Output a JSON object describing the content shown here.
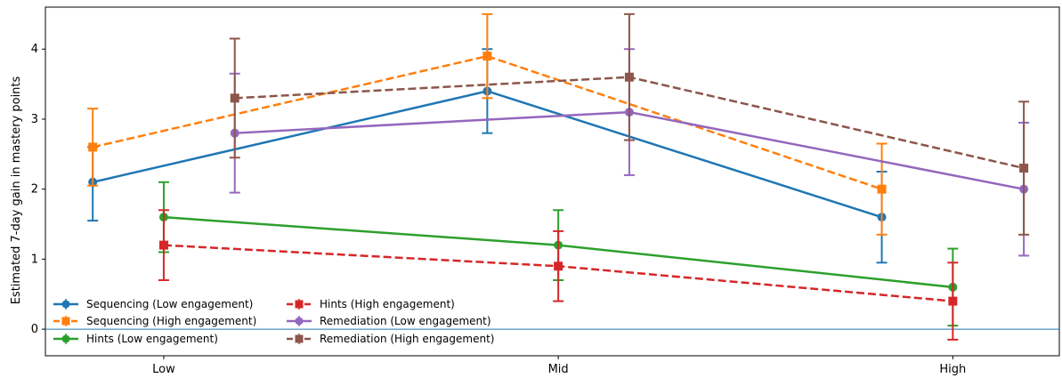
{
  "chart_data": {
    "type": "line",
    "ylabel": "Estimated 7-day gain in mastery points",
    "xlabel": "",
    "categories": [
      "Low",
      "Mid",
      "High"
    ],
    "yticks": [
      0,
      1,
      2,
      3,
      4
    ],
    "ylim": [
      -0.38,
      4.6
    ],
    "zero_line": true,
    "grid": false,
    "legend_position": "bottom-left",
    "series": [
      {
        "name": "Sequencing (Low engagement)",
        "color": "#1f77b4",
        "marker": "circle",
        "dashed": false,
        "x": [
          -0.18,
          0.82,
          1.82
        ],
        "y": [
          2.1,
          3.4,
          1.6
        ],
        "err_low": [
          1.55,
          2.8,
          0.95
        ],
        "err_high": [
          2.6,
          4.0,
          2.25
        ]
      },
      {
        "name": "Sequencing (High engagement)",
        "color": "#ff7f0e",
        "marker": "square",
        "dashed": true,
        "x": [
          -0.18,
          0.82,
          1.82
        ],
        "y": [
          2.6,
          3.9,
          2.0
        ],
        "err_low": [
          2.05,
          3.3,
          1.35
        ],
        "err_high": [
          3.15,
          4.5,
          2.65
        ]
      },
      {
        "name": "Hints (Low engagement)",
        "color": "#2ca02c",
        "marker": "circle",
        "dashed": false,
        "x": [
          0.0,
          1.0,
          2.0
        ],
        "y": [
          1.6,
          1.2,
          0.6
        ],
        "err_low": [
          1.1,
          0.7,
          0.05
        ],
        "err_high": [
          2.1,
          1.7,
          1.15
        ]
      },
      {
        "name": "Hints (High engagement)",
        "color": "#d62728",
        "marker": "square",
        "dashed": true,
        "x": [
          0.0,
          1.0,
          2.0
        ],
        "y": [
          1.2,
          0.9,
          0.4
        ],
        "err_low": [
          0.7,
          0.4,
          -0.15
        ],
        "err_high": [
          1.7,
          1.4,
          0.95
        ]
      },
      {
        "name": "Remediation (Low engagement)",
        "color": "#9467bd",
        "marker": "circle",
        "dashed": false,
        "x": [
          0.18,
          1.18,
          2.18
        ],
        "y": [
          2.8,
          3.1,
          2.0
        ],
        "err_low": [
          1.95,
          2.2,
          1.05
        ],
        "err_high": [
          3.65,
          4.0,
          2.95
        ]
      },
      {
        "name": "Remediation (High engagement)",
        "color": "#8c564b",
        "marker": "square",
        "dashed": true,
        "x": [
          0.18,
          1.18,
          2.18
        ],
        "y": [
          3.3,
          3.6,
          2.3
        ],
        "err_low": [
          2.45,
          2.7,
          1.35
        ],
        "err_high": [
          4.15,
          4.5,
          3.25
        ]
      }
    ]
  }
}
